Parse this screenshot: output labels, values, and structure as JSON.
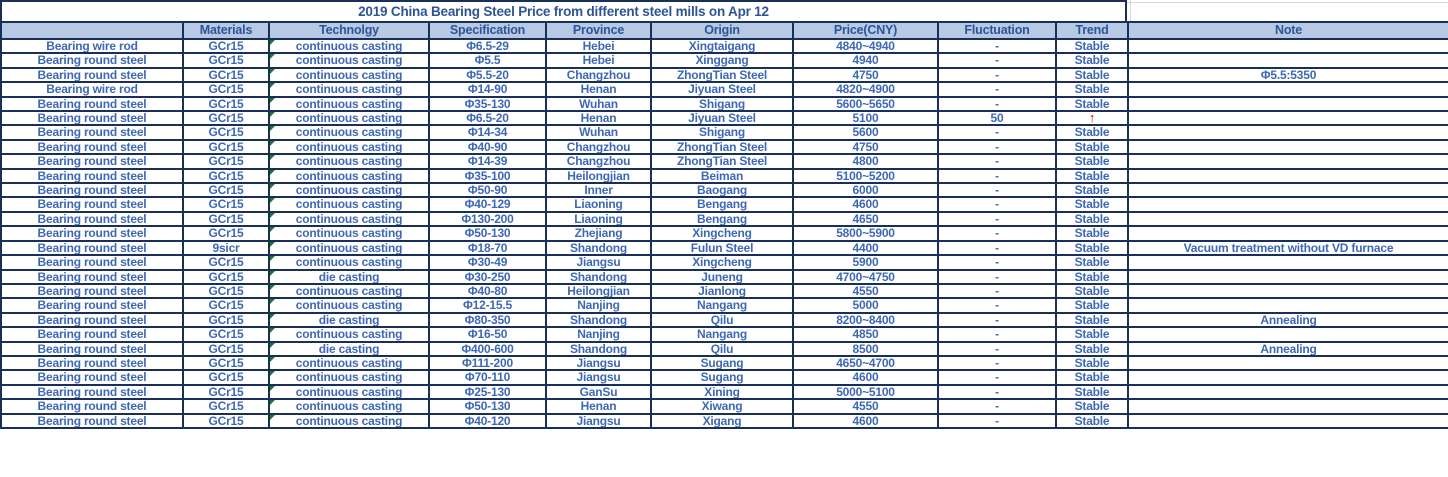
{
  "title": "2019 China Bearing Steel Price from different steel mills on Apr 12",
  "columns": [
    "",
    "Materials",
    "Technolgy",
    "Specification",
    "Province",
    "Origin",
    "Price(CNY)",
    "Fluctuation",
    "Trend",
    "Note"
  ],
  "column_keys": [
    "name",
    "materials",
    "technology",
    "specification",
    "province",
    "origin",
    "price",
    "fluctuation",
    "trend",
    "note"
  ],
  "trend_up_symbol": "↑",
  "rows": [
    {
      "name": "Bearing wire rod",
      "materials": "GCr15",
      "technology": "continuous casting",
      "specification": "Φ6.5-29",
      "province": "Hebei",
      "origin": "Xingtaigang",
      "price": "4840~4940",
      "fluctuation": "-",
      "trend": "Stable",
      "note": ""
    },
    {
      "name": "Bearing round steel",
      "materials": "GCr15",
      "technology": "continuous casting",
      "specification": "Φ5.5",
      "province": "Hebei",
      "origin": "Xinggang",
      "price": "4940",
      "fluctuation": "-",
      "trend": "Stable",
      "note": ""
    },
    {
      "name": "Bearing round steel",
      "materials": "GCr15",
      "technology": "continuous casting",
      "specification": "Φ5.5-20",
      "province": "Changzhou",
      "origin": "ZhongTian Steel",
      "price": "4750",
      "fluctuation": "-",
      "trend": "Stable",
      "note": "Φ5.5:5350"
    },
    {
      "name": "Bearing wire rod",
      "materials": "GCr15",
      "technology": "continuous casting",
      "specification": "Φ14-90",
      "province": "Henan",
      "origin": "Jiyuan Steel",
      "price": "4820~4900",
      "fluctuation": "-",
      "trend": "Stable",
      "note": ""
    },
    {
      "name": "Bearing round steel",
      "materials": "GCr15",
      "technology": "continuous casting",
      "specification": "Φ35-130",
      "province": "Wuhan",
      "origin": "Shigang",
      "price": "5600~5650",
      "fluctuation": "-",
      "trend": "Stable",
      "note": ""
    },
    {
      "name": "Bearing round steel",
      "materials": "GCr15",
      "technology": "continuous casting",
      "specification": "Φ6.5-20",
      "province": "Henan",
      "origin": "Jiyuan Steel",
      "price": "5100",
      "fluctuation": "50",
      "trend": "↑",
      "note": ""
    },
    {
      "name": "Bearing round steel",
      "materials": "GCr15",
      "technology": "continuous casting",
      "specification": "Φ14-34",
      "province": "Wuhan",
      "origin": "Shigang",
      "price": "5600",
      "fluctuation": "-",
      "trend": "Stable",
      "note": ""
    },
    {
      "name": "Bearing round steel",
      "materials": "GCr15",
      "technology": "continuous casting",
      "specification": "Φ40-90",
      "province": "Changzhou",
      "origin": "ZhongTian Steel",
      "price": "4750",
      "fluctuation": "-",
      "trend": "Stable",
      "note": ""
    },
    {
      "name": "Bearing round steel",
      "materials": "GCr15",
      "technology": "continuous casting",
      "specification": "Φ14-39",
      "province": "Changzhou",
      "origin": "ZhongTian Steel",
      "price": "4800",
      "fluctuation": "-",
      "trend": "Stable",
      "note": ""
    },
    {
      "name": "Bearing round steel",
      "materials": "GCr15",
      "technology": "continuous casting",
      "specification": "Φ35-100",
      "province": "Heilongjian",
      "origin": "Beiman",
      "price": "5100~5200",
      "fluctuation": "-",
      "trend": "Stable",
      "note": ""
    },
    {
      "name": "Bearing round steel",
      "materials": "GCr15",
      "technology": "continuous casting",
      "specification": "Φ50-90",
      "province": "Inner",
      "origin": "Baogang",
      "price": "6000",
      "fluctuation": "-",
      "trend": "Stable",
      "note": ""
    },
    {
      "name": "Bearing round steel",
      "materials": "GCr15",
      "technology": "continuous casting",
      "specification": "Φ40-129",
      "province": "Liaoning",
      "origin": "Bengang",
      "price": "4600",
      "fluctuation": "-",
      "trend": "Stable",
      "note": ""
    },
    {
      "name": "Bearing round steel",
      "materials": "GCr15",
      "technology": "continuous casting",
      "specification": "Φ130-200",
      "province": "Liaoning",
      "origin": "Bengang",
      "price": "4650",
      "fluctuation": "-",
      "trend": "Stable",
      "note": ""
    },
    {
      "name": "Bearing round steel",
      "materials": "GCr15",
      "technology": "continuous casting",
      "specification": "Φ50-130",
      "province": "Zhejiang",
      "origin": "Xingcheng",
      "price": "5800~5900",
      "fluctuation": "-",
      "trend": "Stable",
      "note": ""
    },
    {
      "name": "Bearing round steel",
      "materials": "9sicr",
      "technology": "continuous casting",
      "specification": "Φ18-70",
      "province": "Shandong",
      "origin": "Fulun Steel",
      "price": "4400",
      "fluctuation": "-",
      "trend": "Stable",
      "note": "Vacuum treatment without VD furnace"
    },
    {
      "name": "Bearing round steel",
      "materials": "GCr15",
      "technology": "continuous casting",
      "specification": "Φ30-49",
      "province": "Jiangsu",
      "origin": "Xingcheng",
      "price": "5900",
      "fluctuation": "-",
      "trend": "Stable",
      "note": ""
    },
    {
      "name": "Bearing round steel",
      "materials": "GCr15",
      "technology": "die casting",
      "specification": "Φ30-250",
      "province": "Shandong",
      "origin": "Juneng",
      "price": "4700~4750",
      "fluctuation": "-",
      "trend": "Stable",
      "note": ""
    },
    {
      "name": "Bearing round steel",
      "materials": "GCr15",
      "technology": "continuous casting",
      "specification": "Φ40-80",
      "province": "Heilongjian",
      "origin": "Jianlong",
      "price": "4550",
      "fluctuation": "-",
      "trend": "Stable",
      "note": ""
    },
    {
      "name": "Bearing round steel",
      "materials": "GCr15",
      "technology": "continuous casting",
      "specification": "Φ12-15.5",
      "province": "Nanjing",
      "origin": "Nangang",
      "price": "5000",
      "fluctuation": "-",
      "trend": "Stable",
      "note": ""
    },
    {
      "name": "Bearing round steel",
      "materials": "GCr15",
      "technology": "die casting",
      "specification": "Φ80-350",
      "province": "Shandong",
      "origin": "Qilu",
      "price": "8200~8400",
      "fluctuation": "-",
      "trend": "Stable",
      "note": "Annealing"
    },
    {
      "name": "Bearing round steel",
      "materials": "GCr15",
      "technology": "continuous casting",
      "specification": "Φ16-50",
      "province": "Nanjing",
      "origin": "Nangang",
      "price": "4850",
      "fluctuation": "-",
      "trend": "Stable",
      "note": ""
    },
    {
      "name": "Bearing round steel",
      "materials": "GCr15",
      "technology": "die casting",
      "specification": "Φ400-600",
      "province": "Shandong",
      "origin": "Qilu",
      "price": "8500",
      "fluctuation": "-",
      "trend": "Stable",
      "note": "Annealing"
    },
    {
      "name": "Bearing round steel",
      "materials": "GCr15",
      "technology": "continuous casting",
      "specification": "Φ111-200",
      "province": "Jiangsu",
      "origin": "Sugang",
      "price": "4650~4700",
      "fluctuation": "-",
      "trend": "Stable",
      "note": ""
    },
    {
      "name": "Bearing round steel",
      "materials": "GCr15",
      "technology": "continuous casting",
      "specification": "Φ70-110",
      "province": "Jiangsu",
      "origin": "Sugang",
      "price": "4600",
      "fluctuation": "-",
      "trend": "Stable",
      "note": ""
    },
    {
      "name": "Bearing round steel",
      "materials": "GCr15",
      "technology": "continuous casting",
      "specification": "Φ25-130",
      "province": "GanSu",
      "origin": "Xining",
      "price": "5000~5100",
      "fluctuation": "-",
      "trend": "Stable",
      "note": ""
    },
    {
      "name": "Bearing round steel",
      "materials": "GCr15",
      "technology": "continuous casting",
      "specification": "Φ50-130",
      "province": "Henan",
      "origin": "Xiwang",
      "price": "4550",
      "fluctuation": "-",
      "trend": "Stable",
      "note": ""
    },
    {
      "name": "Bearing round steel",
      "materials": "GCr15",
      "technology": "continuous casting",
      "specification": "Φ40-120",
      "province": "Jiangsu",
      "origin": "Xigang",
      "price": "4600",
      "fluctuation": "-",
      "trend": "Stable",
      "note": ""
    }
  ],
  "colors": {
    "border": "#1A2F55",
    "header_fill": "#B7C9E5",
    "text": "#3E68B5",
    "header_text": "#2F5496",
    "trend_up": "#E00000",
    "err": "#1E7A1E",
    "gridline": "#D9D9D9"
  }
}
